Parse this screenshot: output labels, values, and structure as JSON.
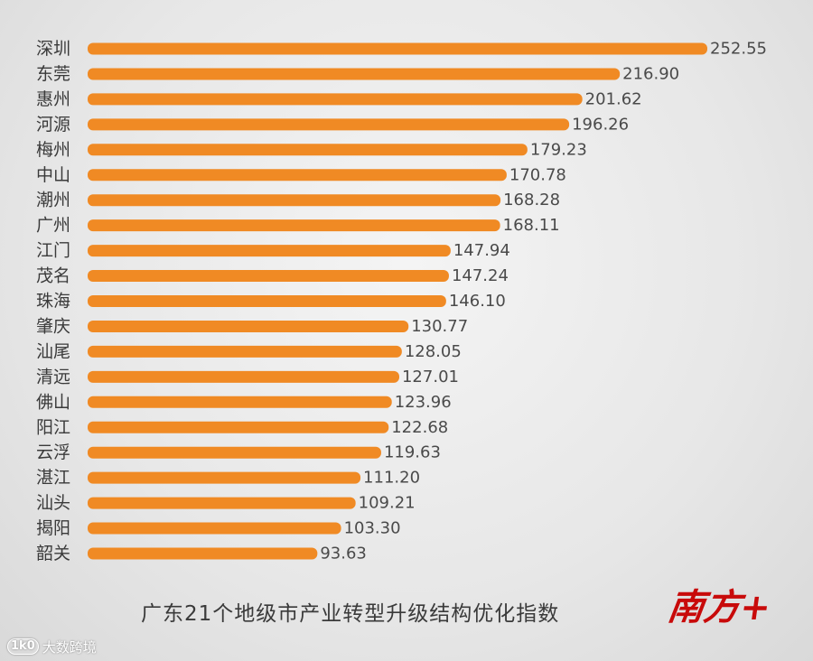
{
  "chart_data": {
    "type": "bar",
    "orientation": "horizontal",
    "title": "广东21个地级市产业转型升级结构优化指数",
    "categories": [
      "深圳",
      "东莞",
      "惠州",
      "河源",
      "梅州",
      "中山",
      "潮州",
      "广州",
      "江门",
      "茂名",
      "珠海",
      "肇庆",
      "汕尾",
      "清远",
      "佛山",
      "阳江",
      "云浮",
      "湛江",
      "汕头",
      "揭阳",
      "韶关"
    ],
    "values": [
      252.55,
      216.9,
      201.62,
      196.26,
      179.23,
      170.78,
      168.28,
      168.11,
      147.94,
      147.24,
      146.1,
      130.77,
      128.05,
      127.01,
      123.96,
      122.68,
      119.63,
      111.2,
      109.21,
      103.3,
      93.63
    ],
    "value_labels": [
      "252.55",
      "216.90",
      "201.62",
      "196.26",
      "179.23",
      "170.78",
      "168.28",
      "168.11",
      "147.94",
      "147.24",
      "146.10",
      "130.77",
      "128.05",
      "127.01",
      "123.96",
      "122.68",
      "119.63",
      "111.20",
      "109.21",
      "103.30",
      "93.63"
    ],
    "xlim": [
      0,
      252.55
    ],
    "grid": false,
    "colors": {
      "bar": "#f08a24",
      "background": "#e9e9e9",
      "text": "#3a3a3a",
      "logo": "#c80a0a"
    }
  },
  "branding": {
    "logo_text": "南方+",
    "watermark_icon": "1k0",
    "watermark_text": "大数跨境"
  }
}
